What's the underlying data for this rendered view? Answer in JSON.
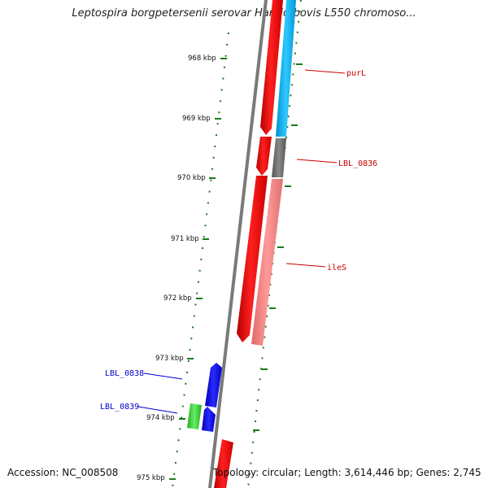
{
  "title": "Leptospira borgpetersenii serovar Hardjo-bovis L550 chromoso...",
  "accession": "Accession: NC_008508",
  "summary": "Topology: circular; Length: 3,614,446 bp; Genes: 2,745",
  "ticks": [
    "968 kbp",
    "969 kbp",
    "970 kbp",
    "971 kbp",
    "972 kbp",
    "973 kbp",
    "974 kbp",
    "975 kbp"
  ],
  "genes": [
    {
      "label": "purL",
      "color": "#cc0000"
    },
    {
      "label": "LBL_0836",
      "color": "#cc0000"
    },
    {
      "label": "ileS",
      "color": "#cc0000"
    },
    {
      "label": "LBL_0838",
      "color": "#0000cc"
    },
    {
      "label": "LBL_0839",
      "color": "#0000cc"
    }
  ],
  "colors": {
    "axis": "#7a7a7a",
    "tick": "#1a7a1a",
    "forward_gene": "#ff0000",
    "cds_blue": "#00b4f0",
    "cds_grey": "#666666",
    "cds_pink": "#f08080",
    "reverse_gene": "#0000ee",
    "green_gene": "#33cc33"
  }
}
